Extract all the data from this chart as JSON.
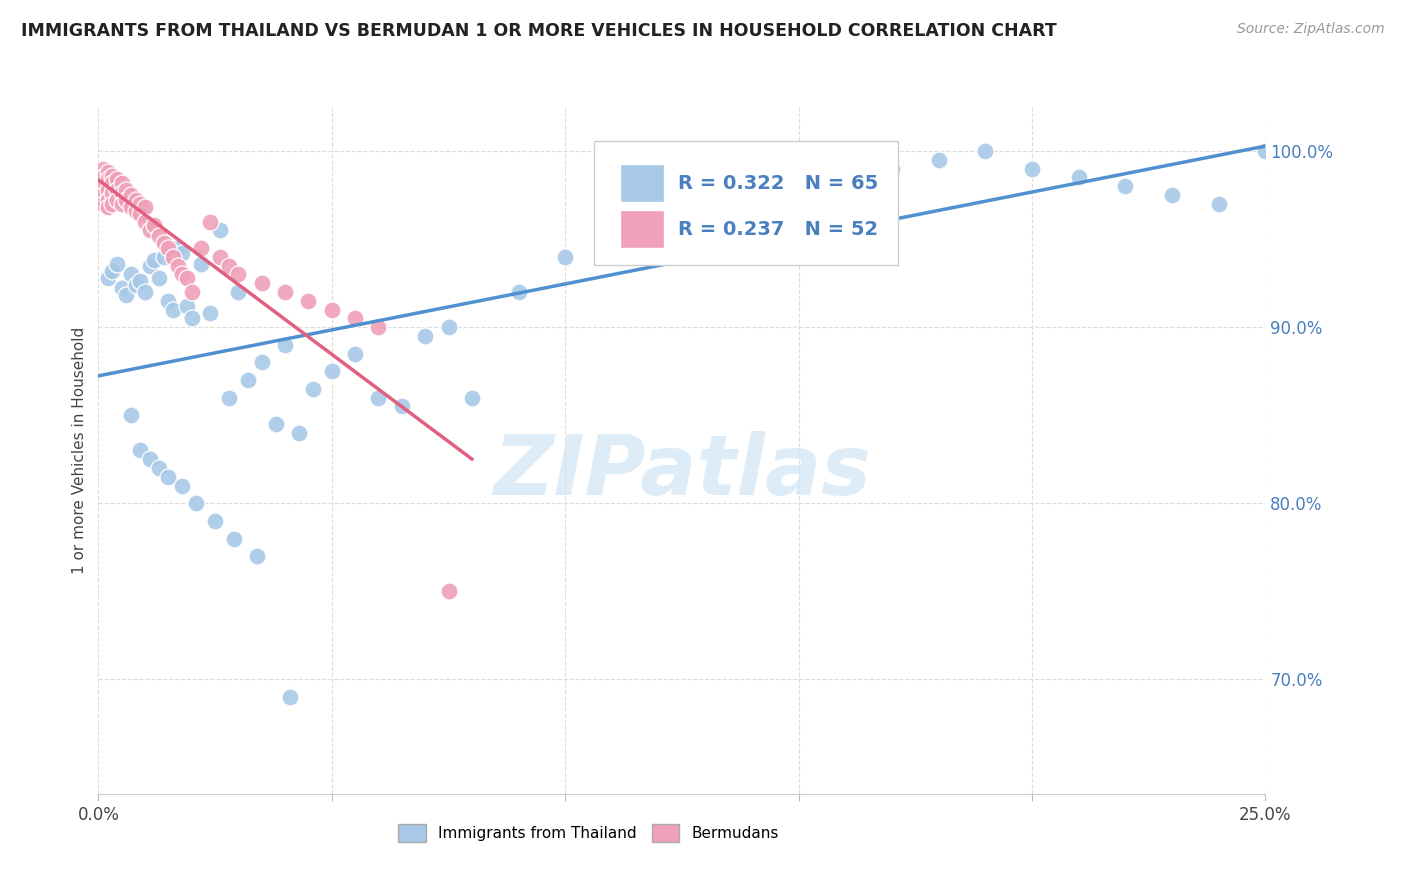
{
  "title": "IMMIGRANTS FROM THAILAND VS BERMUDAN 1 OR MORE VEHICLES IN HOUSEHOLD CORRELATION CHART",
  "source": "Source: ZipAtlas.com",
  "ylabel": "1 or more Vehicles in Household",
  "ytick_values": [
    0.7,
    0.8,
    0.9,
    1.0
  ],
  "ytick_labels": [
    "70.0%",
    "80.0%",
    "90.0%",
    "100.0%"
  ],
  "xtick_values": [
    0.0,
    0.05,
    0.1,
    0.15,
    0.2,
    0.25
  ],
  "xtick_labels": [
    "0.0%",
    "",
    "",
    "",
    "",
    "25.0%"
  ],
  "xmin": 0.0,
  "xmax": 0.25,
  "ymin": 0.635,
  "ymax": 1.025,
  "legend_blue_label": "Immigrants from Thailand",
  "legend_pink_label": "Bermudans",
  "legend_blue_text": "R = 0.322   N = 65",
  "legend_pink_text": "R = 0.237   N = 52",
  "blue_color": "#a8c8e8",
  "pink_color": "#f0a0b8",
  "blue_line_color": "#5090d0",
  "pink_line_color": "#e06080",
  "text_color_blue": "#4a7fc0",
  "watermark_color": "#d0e4f4",
  "blue_scatter_x": [
    0.002,
    0.003,
    0.004,
    0.005,
    0.006,
    0.007,
    0.008,
    0.009,
    0.01,
    0.011,
    0.012,
    0.013,
    0.014,
    0.015,
    0.016,
    0.017,
    0.018,
    0.019,
    0.02,
    0.022,
    0.024,
    0.026,
    0.028,
    0.03,
    0.032,
    0.035,
    0.038,
    0.04,
    0.043,
    0.046,
    0.05,
    0.055,
    0.06,
    0.065,
    0.07,
    0.075,
    0.08,
    0.09,
    0.1,
    0.11,
    0.12,
    0.13,
    0.14,
    0.15,
    0.16,
    0.17,
    0.18,
    0.19,
    0.2,
    0.21,
    0.22,
    0.23,
    0.24,
    0.25,
    0.007,
    0.009,
    0.011,
    0.013,
    0.015,
    0.018,
    0.021,
    0.025,
    0.029,
    0.034,
    0.041
  ],
  "blue_scatter_y": [
    0.928,
    0.932,
    0.936,
    0.922,
    0.918,
    0.93,
    0.924,
    0.926,
    0.92,
    0.935,
    0.938,
    0.928,
    0.94,
    0.915,
    0.91,
    0.945,
    0.942,
    0.912,
    0.905,
    0.936,
    0.908,
    0.955,
    0.86,
    0.92,
    0.87,
    0.88,
    0.845,
    0.89,
    0.84,
    0.865,
    0.875,
    0.885,
    0.86,
    0.855,
    0.895,
    0.9,
    0.86,
    0.92,
    0.94,
    0.96,
    0.965,
    0.97,
    0.975,
    0.98,
    0.985,
    0.99,
    0.995,
    1.0,
    0.99,
    0.985,
    0.98,
    0.975,
    0.97,
    1.0,
    0.85,
    0.83,
    0.825,
    0.82,
    0.815,
    0.81,
    0.8,
    0.79,
    0.78,
    0.77,
    0.69
  ],
  "pink_scatter_x": [
    0.001,
    0.001,
    0.001,
    0.001,
    0.001,
    0.002,
    0.002,
    0.002,
    0.002,
    0.002,
    0.003,
    0.003,
    0.003,
    0.003,
    0.004,
    0.004,
    0.004,
    0.005,
    0.005,
    0.005,
    0.006,
    0.006,
    0.007,
    0.007,
    0.008,
    0.008,
    0.009,
    0.009,
    0.01,
    0.01,
    0.011,
    0.012,
    0.013,
    0.014,
    0.015,
    0.016,
    0.017,
    0.018,
    0.019,
    0.02,
    0.022,
    0.024,
    0.026,
    0.028,
    0.03,
    0.035,
    0.04,
    0.045,
    0.05,
    0.055,
    0.06,
    0.075
  ],
  "pink_scatter_y": [
    0.99,
    0.985,
    0.98,
    0.975,
    0.97,
    0.988,
    0.984,
    0.978,
    0.972,
    0.968,
    0.986,
    0.982,
    0.976,
    0.97,
    0.984,
    0.978,
    0.972,
    0.982,
    0.976,
    0.97,
    0.978,
    0.972,
    0.975,
    0.968,
    0.972,
    0.966,
    0.97,
    0.964,
    0.968,
    0.96,
    0.955,
    0.958,
    0.952,
    0.948,
    0.945,
    0.94,
    0.935,
    0.93,
    0.928,
    0.92,
    0.945,
    0.96,
    0.94,
    0.935,
    0.93,
    0.925,
    0.92,
    0.915,
    0.91,
    0.905,
    0.9,
    0.75
  ]
}
